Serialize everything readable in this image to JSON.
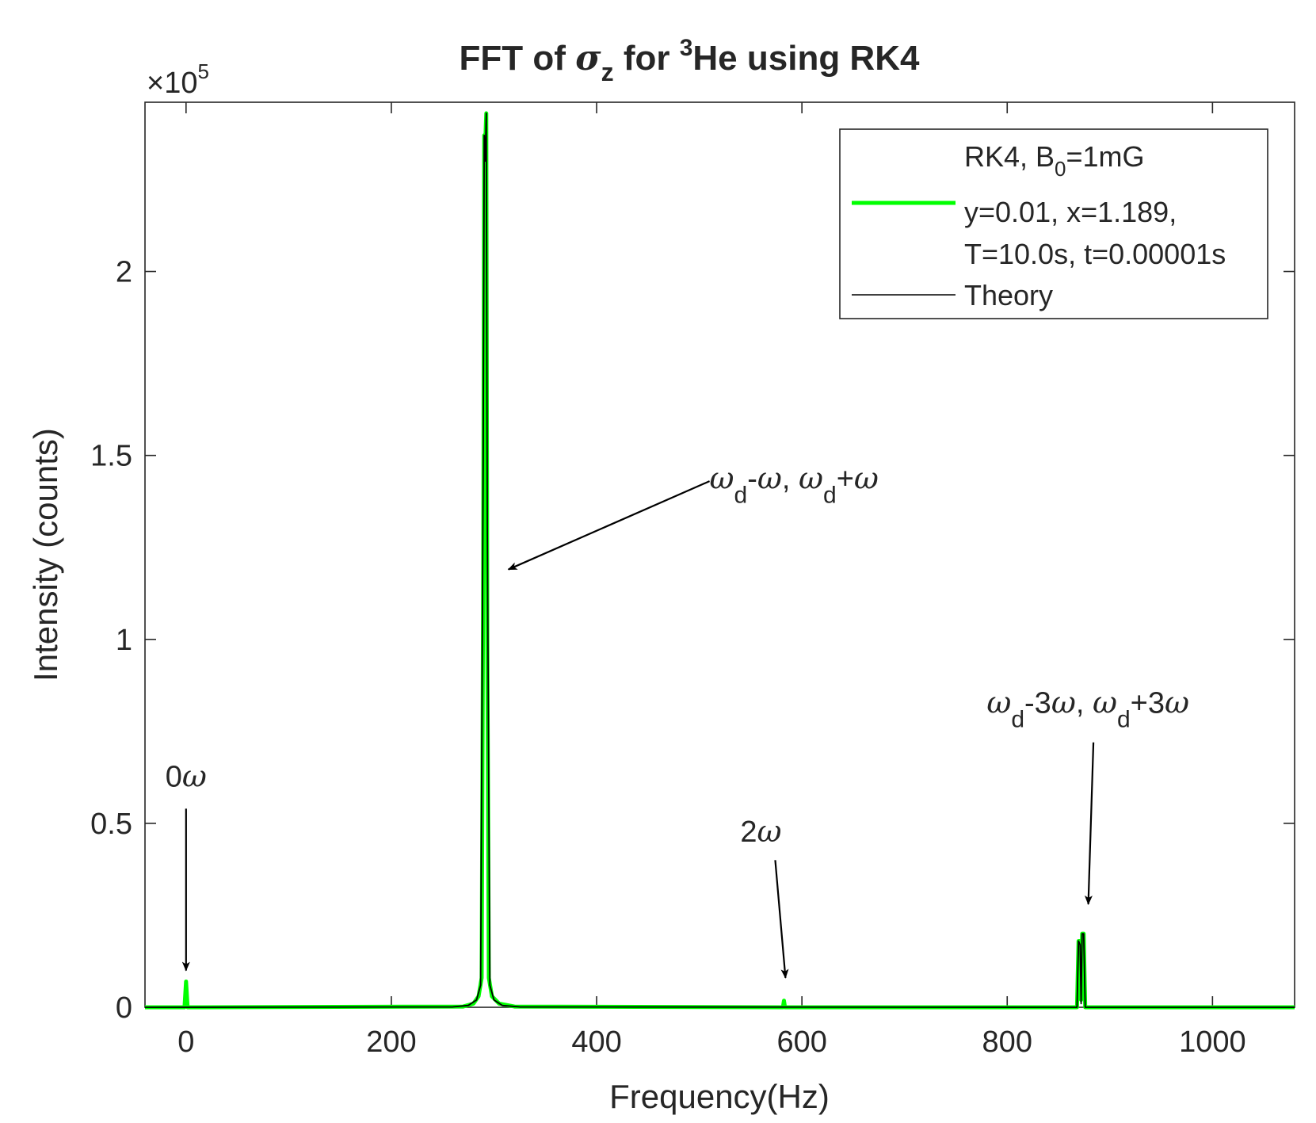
{
  "chart_data": {
    "type": "line",
    "title": {
      "prefix": "FFT of ",
      "sigma": "σ",
      "sigma_sub": "z",
      "mid": " for ",
      "iso_sup": "3",
      "suffix": "He using RK4"
    },
    "xlabel": "Frequency(Hz)",
    "ylabel": "Intensity (counts)",
    "y_exponent": {
      "base": "×10",
      "power": "5"
    },
    "xlim": [
      -40,
      1080
    ],
    "ylim": [
      0,
      2.46
    ],
    "xticks": [
      0,
      200,
      400,
      600,
      800,
      1000
    ],
    "xtick_labels": [
      "0",
      "200",
      "400",
      "600",
      "800",
      "1000"
    ],
    "yticks": [
      0,
      0.5,
      1,
      1.5,
      2
    ],
    "ytick_labels": [
      "0",
      "0.5",
      "1",
      "1.5",
      "2"
    ],
    "grid": false,
    "legend_position": "top-right",
    "legend": {
      "header": {
        "text": "RK4, B",
        "sub": "0",
        "after": "=1mG"
      },
      "rk4_line1": "y=0.01, x=1.189,",
      "rk4_line2": "T=10.0s, t=0.00001s",
      "theory": "Theory"
    },
    "series": [
      {
        "name": "RK4",
        "color": "#00ff00",
        "points": [
          [
            -40,
            0
          ],
          [
            -1.5,
            0
          ],
          [
            0,
            0.07
          ],
          [
            1.5,
            0
          ],
          [
            270,
            0.002
          ],
          [
            280,
            0.01
          ],
          [
            285,
            0.03
          ],
          [
            288,
            0.08
          ],
          [
            289.5,
            1.2
          ],
          [
            290.5,
            2.37
          ],
          [
            291.5,
            2.35
          ],
          [
            292.5,
            2.43
          ],
          [
            293.5,
            1.0
          ],
          [
            295,
            0.08
          ],
          [
            298,
            0.03
          ],
          [
            305,
            0.01
          ],
          [
            320,
            0.002
          ],
          [
            581.5,
            0
          ],
          [
            582.5,
            0.018
          ],
          [
            583.5,
            0
          ],
          [
            868,
            0
          ],
          [
            869.5,
            0.18
          ],
          [
            871,
            0.18
          ],
          [
            872,
            0.02
          ],
          [
            873,
            0.2
          ],
          [
            874.5,
            0.2
          ],
          [
            876,
            0
          ],
          [
            1080,
            0
          ]
        ]
      },
      {
        "name": "Theory",
        "color": "#000000",
        "points": [
          [
            -40,
            0
          ],
          [
            260,
            0.001
          ],
          [
            275,
            0.005
          ],
          [
            283,
            0.02
          ],
          [
            287,
            0.06
          ],
          [
            289.5,
            1.5
          ],
          [
            290.5,
            2.37
          ],
          [
            291.5,
            2.3
          ],
          [
            292.5,
            2.43
          ],
          [
            293.5,
            1.3
          ],
          [
            296,
            0.06
          ],
          [
            300,
            0.02
          ],
          [
            308,
            0.005
          ],
          [
            325,
            0.001
          ],
          [
            868,
            0
          ],
          [
            869.5,
            0.18
          ],
          [
            871,
            0.17
          ],
          [
            872,
            0.01
          ],
          [
            873,
            0.2
          ],
          [
            874.5,
            0.2
          ],
          [
            876,
            0
          ],
          [
            1080,
            0
          ]
        ]
      }
    ],
    "annotations": [
      {
        "name": "zero-omega",
        "parts": [
          [
            "0",
            "up"
          ],
          [
            "ω",
            "it"
          ]
        ],
        "text_x": 0,
        "text_y": 0.6,
        "from": [
          0,
          0.54
        ],
        "to": [
          0,
          0.1
        ]
      },
      {
        "name": "wd-minus-plus-omega",
        "parts": [
          [
            "ω",
            "it"
          ],
          [
            "d",
            "sub"
          ],
          [
            "-",
            "up"
          ],
          [
            "ω",
            "it"
          ],
          [
            ", ",
            "up"
          ],
          [
            "ω",
            "it"
          ],
          [
            "d",
            "sub"
          ],
          [
            "+",
            "up"
          ],
          [
            "ω",
            "it"
          ]
        ],
        "text_x": 510,
        "text_y": 1.41,
        "from": [
          510,
          1.43
        ],
        "to": [
          314,
          1.19
        ]
      },
      {
        "name": "two-omega",
        "parts": [
          [
            "2",
            "up"
          ],
          [
            "ω",
            "it"
          ]
        ],
        "text_x": 540,
        "text_y": 0.45,
        "from": [
          574,
          0.4
        ],
        "to": [
          584,
          0.08
        ]
      },
      {
        "name": "wd-minus-plus-3omega",
        "parts": [
          [
            "ω",
            "it"
          ],
          [
            "d",
            "sub"
          ],
          [
            "-3",
            "up"
          ],
          [
            "ω",
            "it"
          ],
          [
            ", ",
            "up"
          ],
          [
            "ω",
            "it"
          ],
          [
            "d",
            "sub"
          ],
          [
            "+3",
            "up"
          ],
          [
            "ω",
            "it"
          ]
        ],
        "text_x": 780,
        "text_y": 0.8,
        "from": [
          884,
          0.72
        ],
        "to": [
          879,
          0.28
        ]
      }
    ]
  }
}
